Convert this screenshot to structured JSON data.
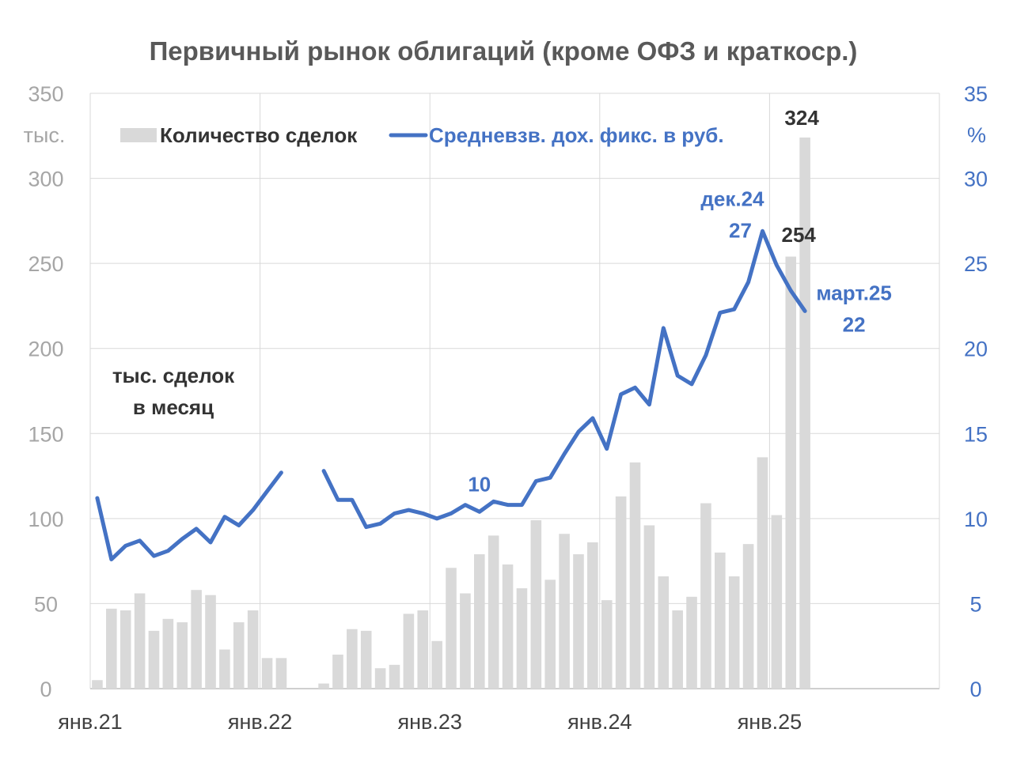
{
  "chart_data": {
    "type": "bar+line",
    "title": "Первичный рынок облигаций (кроме ОФЗ и краткоср.)",
    "left_axis": {
      "unit_label": "тыс.",
      "range": [
        0,
        350
      ],
      "ticks": [
        "0",
        "50",
        "100",
        "150",
        "200",
        "250",
        "300",
        "350"
      ]
    },
    "right_axis": {
      "unit_label": "%",
      "range": [
        0,
        35
      ],
      "ticks": [
        "0",
        "5",
        "10",
        "15",
        "20",
        "25",
        "30",
        "35"
      ]
    },
    "x_tick_labels": [
      "янв.21",
      "янв.22",
      "янв.23",
      "янв.24",
      "янв.25"
    ],
    "inner_label": [
      "тыс. сделок",
      "в месяц"
    ],
    "months": [
      "2021-01",
      "2021-02",
      "2021-03",
      "2021-04",
      "2021-05",
      "2021-06",
      "2021-07",
      "2021-08",
      "2021-09",
      "2021-10",
      "2021-11",
      "2021-12",
      "2022-01",
      "2022-02",
      "2022-03",
      "2022-04",
      "2022-05",
      "2022-06",
      "2022-07",
      "2022-08",
      "2022-09",
      "2022-10",
      "2022-11",
      "2022-12",
      "2023-01",
      "2023-02",
      "2023-03",
      "2023-04",
      "2023-05",
      "2023-06",
      "2023-07",
      "2023-08",
      "2023-09",
      "2023-10",
      "2023-11",
      "2023-12",
      "2024-01",
      "2024-02",
      "2024-03",
      "2024-04",
      "2024-05",
      "2024-06",
      "2024-07",
      "2024-08",
      "2024-09",
      "2024-10",
      "2024-11",
      "2024-12",
      "2025-01",
      "2025-02",
      "2025-03"
    ],
    "series": [
      {
        "name": "Количество сделок",
        "type": "bar",
        "axis": "left",
        "color": "#d9d9d9",
        "values": [
          5,
          47,
          46,
          56,
          34,
          41,
          39,
          58,
          55,
          23,
          39,
          46,
          18,
          18,
          null,
          null,
          3,
          20,
          35,
          34,
          12,
          14,
          44,
          46,
          28,
          71,
          56,
          79,
          90,
          73,
          59,
          99,
          64,
          91,
          79,
          86,
          52,
          113,
          133,
          96,
          66,
          46,
          54,
          109,
          80,
          66,
          85,
          136,
          102,
          254,
          324
        ]
      },
      {
        "name": "Средневзв. дох. фикс. в руб.",
        "type": "line",
        "axis": "right",
        "color": "#4472c4",
        "values": [
          11.2,
          7.6,
          8.4,
          8.7,
          7.8,
          8.1,
          8.8,
          9.4,
          8.6,
          10.1,
          9.6,
          10.5,
          11.6,
          12.7,
          null,
          null,
          12.8,
          11.1,
          11.1,
          9.5,
          9.7,
          10.3,
          10.5,
          10.3,
          10.0,
          10.3,
          10.8,
          10.4,
          11.0,
          10.8,
          10.8,
          12.2,
          12.4,
          13.8,
          15.1,
          15.9,
          14.1,
          17.3,
          17.7,
          16.7,
          21.2,
          18.4,
          17.9,
          19.6,
          22.1,
          22.3,
          23.9,
          26.9,
          24.9,
          23.4,
          22.2
        ]
      }
    ],
    "annotations": [
      {
        "text": "324",
        "series": "Количество сделок",
        "month": "2025-03"
      },
      {
        "text": "254",
        "series": "Количество сделок",
        "month": "2025-02"
      },
      {
        "text": "10",
        "series": "Средневзв. дох. фикс. в руб.",
        "month": "2023-04"
      },
      {
        "text": "дек.24",
        "text2": "27",
        "series": "Средневзв. дох. фикс. в руб.",
        "month": "2024-12"
      },
      {
        "text": "март.25",
        "text2": "22",
        "series": "Средневзв. дох. фикс. в руб.",
        "month": "2025-03"
      }
    ],
    "grid": true,
    "legend": "top"
  }
}
